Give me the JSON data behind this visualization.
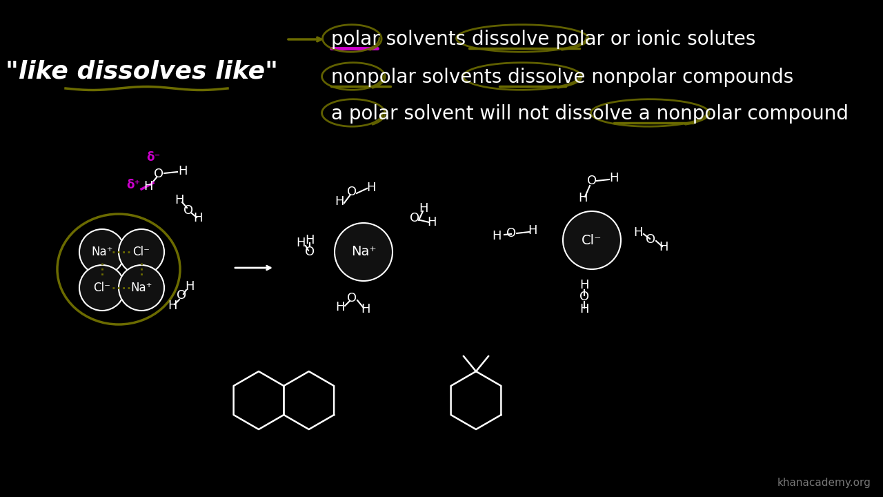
{
  "bg_color": "#000000",
  "text_color": "#ffffff",
  "olive_color": "#6b6b00",
  "magenta_color": "#cc00cc",
  "title_text": "\"like dissolves like\"",
  "line1": "polar solvents dissolve polar or ionic solutes",
  "line2": "nonpolar solvents dissolve nonpolar compounds",
  "line3": "a polar solvent will not dissolve a nonpolar compound",
  "watermark": "khanacademy.org",
  "font_size_main": 20,
  "font_size_title": 26
}
